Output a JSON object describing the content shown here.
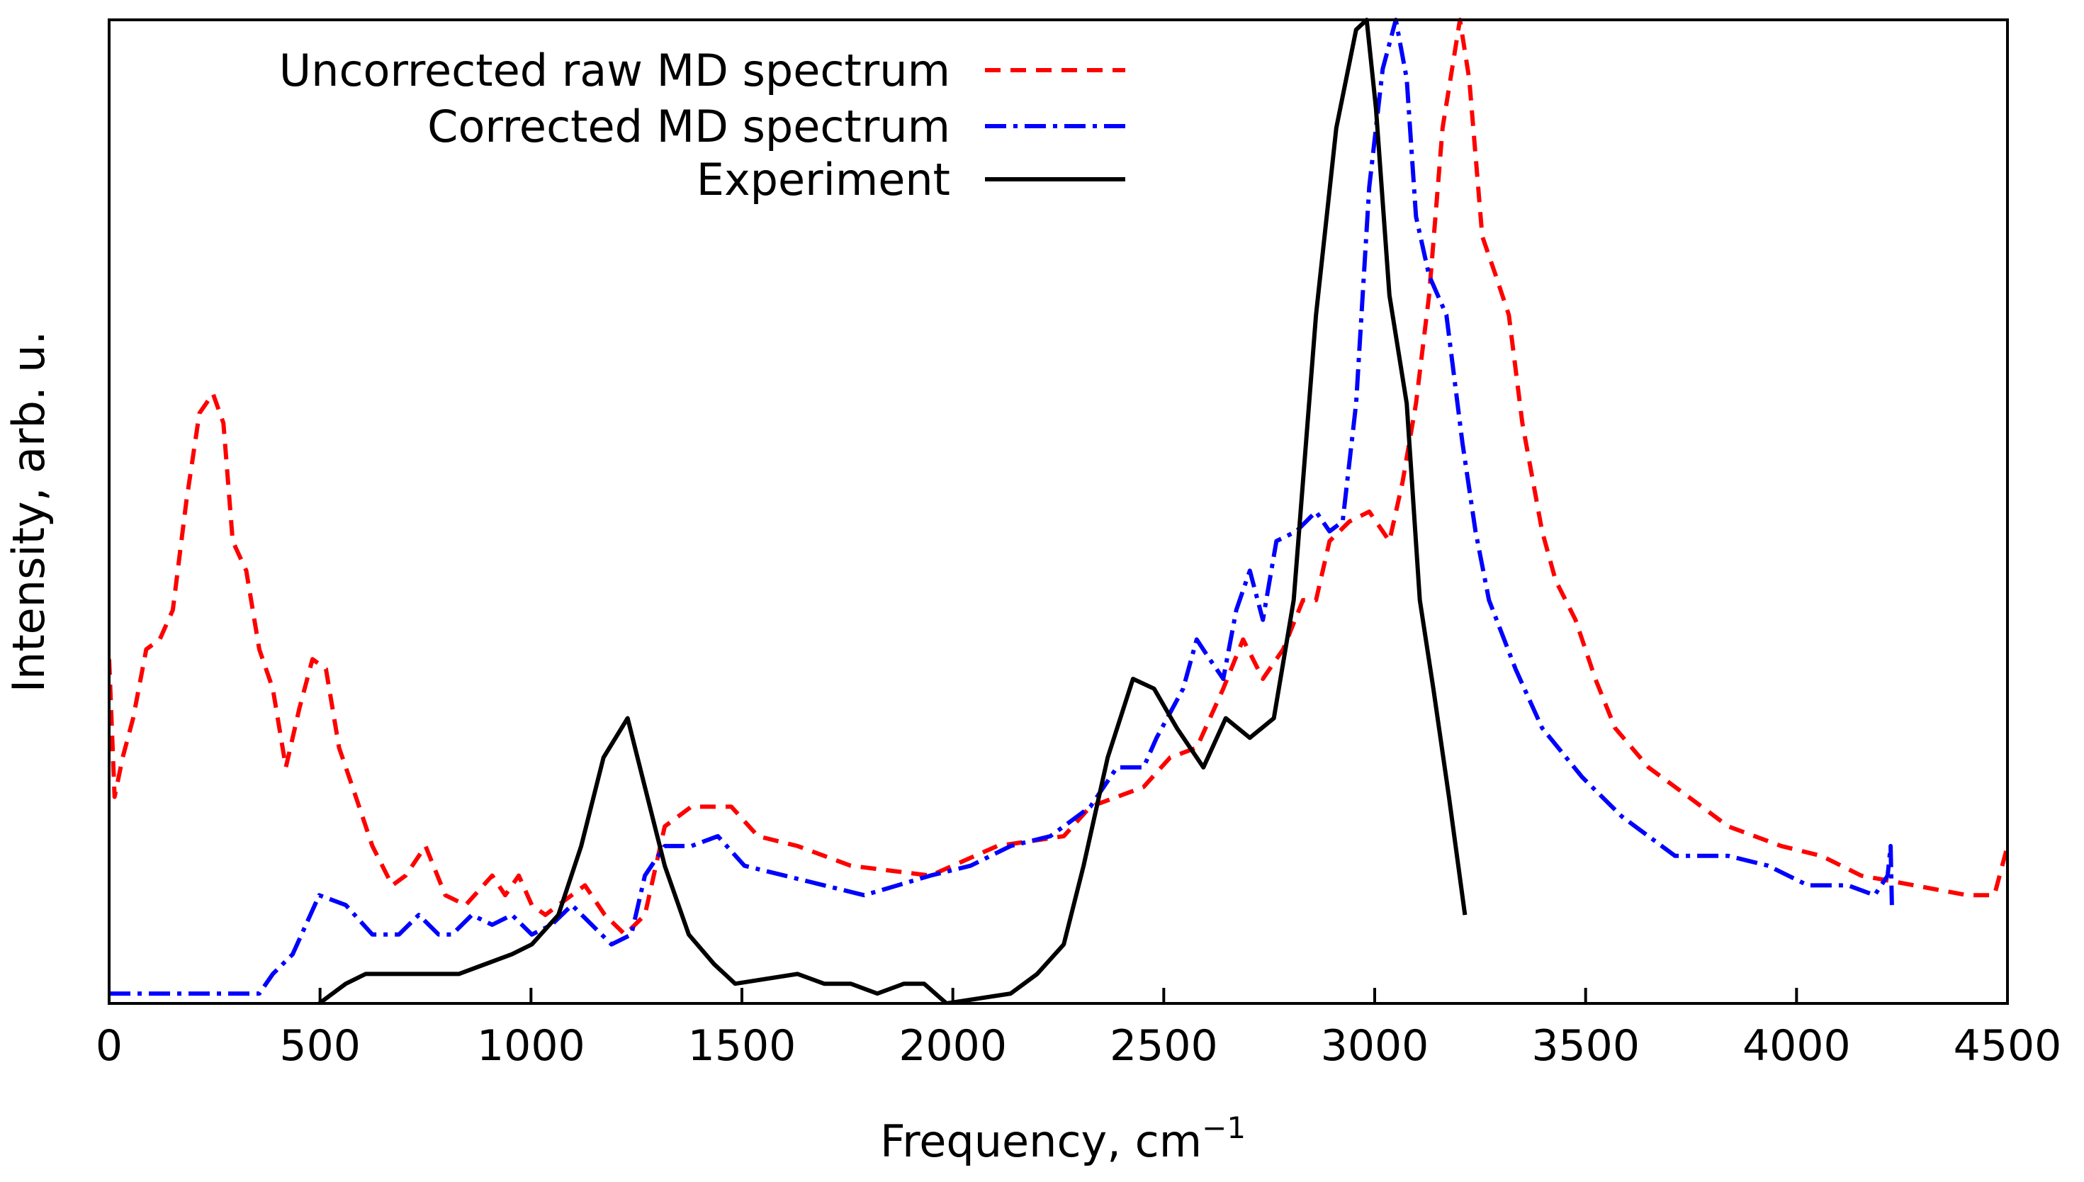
{
  "chart_data": {
    "type": "line",
    "title": "",
    "xlabel": "Frequency, cm",
    "xlabel_sup": "−1",
    "ylabel": "Intensity, arb. u.",
    "xlim": [
      0,
      4500
    ],
    "ylim": [
      0,
      1
    ],
    "xticks": [
      "0",
      "500",
      "1000",
      "1500",
      "2000",
      "2500",
      "3000",
      "3500",
      "4000",
      "4500"
    ],
    "xtick_values": [
      0,
      500,
      1000,
      1500,
      2000,
      2500,
      3000,
      3500,
      4000,
      4500
    ],
    "grid": false,
    "legend_placement": "top-center",
    "series": [
      {
        "name": "Uncorrected raw MD spectrum",
        "color": "#ff0000",
        "style": "dashed",
        "points": [
          [
            0,
            0.35
          ],
          [
            13,
            0.21
          ],
          [
            32,
            0.25
          ],
          [
            57,
            0.29
          ],
          [
            88,
            0.36
          ],
          [
            120,
            0.37
          ],
          [
            151,
            0.4
          ],
          [
            183,
            0.51
          ],
          [
            214,
            0.6
          ],
          [
            246,
            0.62
          ],
          [
            271,
            0.59
          ],
          [
            293,
            0.47
          ],
          [
            325,
            0.44
          ],
          [
            356,
            0.36
          ],
          [
            388,
            0.32
          ],
          [
            419,
            0.24
          ],
          [
            451,
            0.3
          ],
          [
            482,
            0.35
          ],
          [
            514,
            0.34
          ],
          [
            545,
            0.26
          ],
          [
            577,
            0.22
          ],
          [
            624,
            0.16
          ],
          [
            671,
            0.12
          ],
          [
            703,
            0.13
          ],
          [
            750,
            0.16
          ],
          [
            797,
            0.11
          ],
          [
            845,
            0.1
          ],
          [
            908,
            0.13
          ],
          [
            939,
            0.11
          ],
          [
            971,
            0.13
          ],
          [
            1002,
            0.1
          ],
          [
            1034,
            0.09
          ],
          [
            1065,
            0.1
          ],
          [
            1128,
            0.12
          ],
          [
            1175,
            0.09
          ],
          [
            1223,
            0.07
          ],
          [
            1270,
            0.09
          ],
          [
            1317,
            0.18
          ],
          [
            1380,
            0.2
          ],
          [
            1475,
            0.2
          ],
          [
            1538,
            0.17
          ],
          [
            1632,
            0.16
          ],
          [
            1758,
            0.14
          ],
          [
            1947,
            0.13
          ],
          [
            2105,
            0.16
          ],
          [
            2263,
            0.17
          ],
          [
            2326,
            0.2
          ],
          [
            2389,
            0.21
          ],
          [
            2452,
            0.22
          ],
          [
            2515,
            0.25
          ],
          [
            2578,
            0.26
          ],
          [
            2641,
            0.32
          ],
          [
            2688,
            0.37
          ],
          [
            2735,
            0.33
          ],
          [
            2783,
            0.36
          ],
          [
            2830,
            0.41
          ],
          [
            2861,
            0.41
          ],
          [
            2893,
            0.47
          ],
          [
            2940,
            0.49
          ],
          [
            2987,
            0.5
          ],
          [
            3035,
            0.47
          ],
          [
            3066,
            0.53
          ],
          [
            3098,
            0.61
          ],
          [
            3129,
            0.72
          ],
          [
            3161,
            0.89
          ],
          [
            3202,
            1.0
          ],
          [
            3224,
            0.94
          ],
          [
            3255,
            0.78
          ],
          [
            3287,
            0.74
          ],
          [
            3318,
            0.7
          ],
          [
            3350,
            0.59
          ],
          [
            3397,
            0.48
          ],
          [
            3429,
            0.43
          ],
          [
            3476,
            0.39
          ],
          [
            3523,
            0.33
          ],
          [
            3570,
            0.28
          ],
          [
            3649,
            0.24
          ],
          [
            3744,
            0.21
          ],
          [
            3838,
            0.18
          ],
          [
            3964,
            0.16
          ],
          [
            4059,
            0.15
          ],
          [
            4153,
            0.13
          ],
          [
            4279,
            0.12
          ],
          [
            4405,
            0.11
          ],
          [
            4469,
            0.11
          ],
          [
            4500,
            0.16
          ]
        ]
      },
      {
        "name": "Corrected MD spectrum",
        "color": "#0000ff",
        "style": "dashdot",
        "points": [
          [
            0,
            0.01
          ],
          [
            356,
            0.01
          ],
          [
            388,
            0.03
          ],
          [
            435,
            0.05
          ],
          [
            498,
            0.11
          ],
          [
            561,
            0.1
          ],
          [
            624,
            0.07
          ],
          [
            655,
            0.07
          ],
          [
            687,
            0.07
          ],
          [
            734,
            0.09
          ],
          [
            781,
            0.07
          ],
          [
            813,
            0.07
          ],
          [
            860,
            0.09
          ],
          [
            908,
            0.08
          ],
          [
            955,
            0.09
          ],
          [
            1002,
            0.07
          ],
          [
            1049,
            0.08
          ],
          [
            1097,
            0.1
          ],
          [
            1144,
            0.08
          ],
          [
            1191,
            0.06
          ],
          [
            1238,
            0.07
          ],
          [
            1270,
            0.13
          ],
          [
            1317,
            0.16
          ],
          [
            1380,
            0.16
          ],
          [
            1443,
            0.17
          ],
          [
            1506,
            0.14
          ],
          [
            1601,
            0.13
          ],
          [
            1695,
            0.12
          ],
          [
            1790,
            0.11
          ],
          [
            1947,
            0.13
          ],
          [
            2042,
            0.14
          ],
          [
            2137,
            0.16
          ],
          [
            2231,
            0.17
          ],
          [
            2263,
            0.18
          ],
          [
            2326,
            0.2
          ],
          [
            2389,
            0.24
          ],
          [
            2452,
            0.24
          ],
          [
            2483,
            0.27
          ],
          [
            2546,
            0.32
          ],
          [
            2578,
            0.37
          ],
          [
            2609,
            0.35
          ],
          [
            2641,
            0.33
          ],
          [
            2672,
            0.4
          ],
          [
            2704,
            0.44
          ],
          [
            2735,
            0.39
          ],
          [
            2767,
            0.47
          ],
          [
            2814,
            0.48
          ],
          [
            2861,
            0.5
          ],
          [
            2893,
            0.48
          ],
          [
            2924,
            0.49
          ],
          [
            2956,
            0.61
          ],
          [
            2987,
            0.83
          ],
          [
            3019,
            0.95
          ],
          [
            3050,
            1.0
          ],
          [
            3076,
            0.94
          ],
          [
            3098,
            0.8
          ],
          [
            3129,
            0.74
          ],
          [
            3170,
            0.7
          ],
          [
            3208,
            0.57
          ],
          [
            3239,
            0.48
          ],
          [
            3271,
            0.41
          ],
          [
            3334,
            0.34
          ],
          [
            3397,
            0.28
          ],
          [
            3492,
            0.23
          ],
          [
            3586,
            0.19
          ],
          [
            3712,
            0.15
          ],
          [
            3838,
            0.15
          ],
          [
            3933,
            0.14
          ],
          [
            4027,
            0.12
          ],
          [
            4122,
            0.12
          ],
          [
            4185,
            0.11
          ],
          [
            4216,
            0.13
          ],
          [
            4223,
            0.16
          ],
          [
            4226,
            0.1
          ]
        ]
      },
      {
        "name": "Experiment",
        "color": "#000000",
        "style": "solid",
        "points": [
          [
            498,
            0.0
          ],
          [
            561,
            0.02
          ],
          [
            608,
            0.03
          ],
          [
            687,
            0.03
          ],
          [
            829,
            0.03
          ],
          [
            892,
            0.04
          ],
          [
            955,
            0.05
          ],
          [
            1002,
            0.06
          ],
          [
            1065,
            0.09
          ],
          [
            1119,
            0.16
          ],
          [
            1172,
            0.25
          ],
          [
            1229,
            0.29
          ],
          [
            1270,
            0.22
          ],
          [
            1317,
            0.14
          ],
          [
            1374,
            0.07
          ],
          [
            1434,
            0.04
          ],
          [
            1484,
            0.02
          ],
          [
            1632,
            0.03
          ],
          [
            1695,
            0.02
          ],
          [
            1758,
            0.02
          ],
          [
            1821,
            0.01
          ],
          [
            1884,
            0.02
          ],
          [
            1932,
            0.02
          ],
          [
            1985,
            0.0
          ],
          [
            2137,
            0.01
          ],
          [
            2200,
            0.03
          ],
          [
            2263,
            0.06
          ],
          [
            2310,
            0.14
          ],
          [
            2367,
            0.25
          ],
          [
            2427,
            0.33
          ],
          [
            2477,
            0.32
          ],
          [
            2531,
            0.28
          ],
          [
            2594,
            0.24
          ],
          [
            2647,
            0.29
          ],
          [
            2704,
            0.27
          ],
          [
            2761,
            0.29
          ],
          [
            2808,
            0.41
          ],
          [
            2861,
            0.7
          ],
          [
            2909,
            0.89
          ],
          [
            2956,
            0.99
          ],
          [
            2981,
            1.0
          ],
          [
            3003,
            0.91
          ],
          [
            3035,
            0.72
          ],
          [
            3076,
            0.61
          ],
          [
            3107,
            0.41
          ],
          [
            3139,
            0.32
          ],
          [
            3176,
            0.21
          ],
          [
            3214,
            0.09
          ]
        ]
      }
    ]
  }
}
